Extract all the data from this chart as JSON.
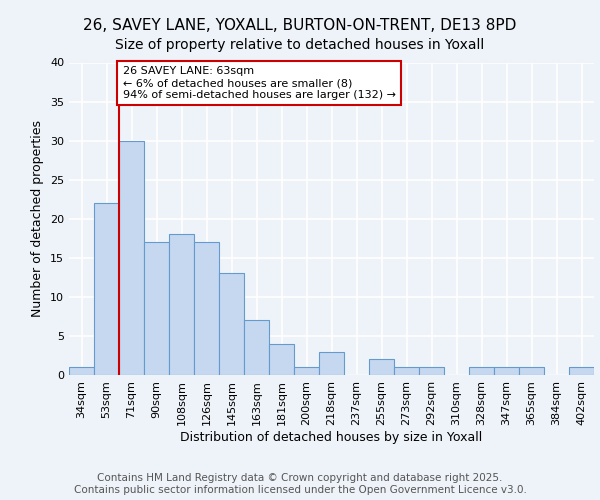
{
  "title_line1": "26, SAVEY LANE, YOXALL, BURTON-ON-TRENT, DE13 8PD",
  "title_line2": "Size of property relative to detached houses in Yoxall",
  "xlabel": "Distribution of detached houses by size in Yoxall",
  "ylabel": "Number of detached properties",
  "bin_labels": [
    "34sqm",
    "53sqm",
    "71sqm",
    "90sqm",
    "108sqm",
    "126sqm",
    "145sqm",
    "163sqm",
    "181sqm",
    "200sqm",
    "218sqm",
    "237sqm",
    "255sqm",
    "273sqm",
    "292sqm",
    "310sqm",
    "328sqm",
    "347sqm",
    "365sqm",
    "384sqm",
    "402sqm"
  ],
  "bar_heights": [
    1,
    22,
    30,
    17,
    18,
    17,
    13,
    7,
    4,
    1,
    3,
    0,
    2,
    1,
    1,
    0,
    1,
    1,
    1,
    0,
    1
  ],
  "bar_color": "#c5d8f0",
  "bar_edge_color": "#6699cc",
  "annotation_box_text": "26 SAVEY LANE: 63sqm\n← 6% of detached houses are smaller (8)\n94% of semi-detached houses are larger (132) →",
  "annotation_box_color": "#ffffff",
  "annotation_box_edge_color": "#cc0000",
  "vline_x_index": 2.0,
  "vline_color": "#cc0000",
  "ylim": [
    0,
    40
  ],
  "yticks": [
    0,
    5,
    10,
    15,
    20,
    25,
    30,
    35,
    40
  ],
  "footer_text": "Contains HM Land Registry data © Crown copyright and database right 2025.\nContains public sector information licensed under the Open Government Licence v3.0.",
  "bg_color": "#eef3f9",
  "grid_color": "#ffffff",
  "title_fontsize": 11,
  "subtitle_fontsize": 10,
  "axis_label_fontsize": 9,
  "tick_fontsize": 8,
  "annotation_fontsize": 8,
  "footer_fontsize": 7.5
}
